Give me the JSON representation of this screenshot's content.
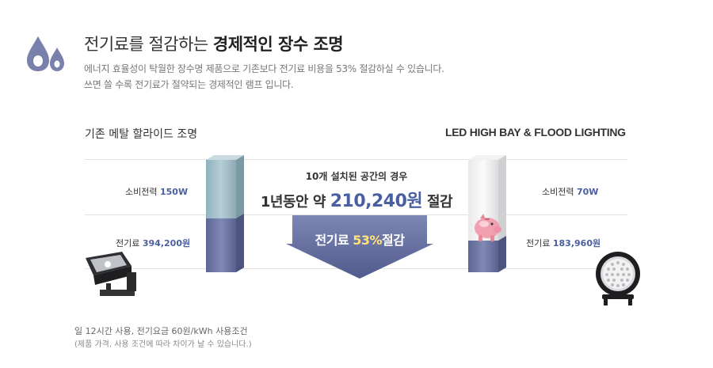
{
  "header": {
    "title_prefix": "전기료를 절감하는 ",
    "title_bold": "경제적인 장수 조명",
    "desc_line1": "에너지 효율성이 탁월한 장수명 제품으로 기존보다 전기료 비용을 53% 절감하실 수 있습니다.",
    "desc_line2": "쓰면 쓸 수록 전기료가 절약되는 경제적인 램프 입니다.",
    "icon": "water-drop-icon"
  },
  "left": {
    "label": "기존 메탈 할라이드 조명",
    "power_label": "소비전력",
    "power_value": "150W",
    "cost_label": "전기료",
    "cost_value": "394,200원"
  },
  "right": {
    "label": "LED HIGH BAY & FLOOD LIGHTING",
    "power_label": "소비전력",
    "power_value": "70W",
    "cost_label": "전기료",
    "cost_value": "183,960원"
  },
  "center": {
    "condition": "10개 설치된 공간의 경우",
    "saving_prefix": "1년동안 약",
    "saving_amount": "210,240원",
    "saving_suffix": "절감",
    "arrow_prefix": "전기료",
    "arrow_percent": "53%",
    "arrow_suffix": "절감"
  },
  "footnote": {
    "line1": "일 12시간 사용, 전기요금 60원/kWh 사용조건",
    "line2": "(제품 가격, 사용 조건에 따라 차이가 날 수 있습니다.)"
  },
  "colors": {
    "accent": "#4a5fa0",
    "bar_dark": "#6f77a3",
    "bar_light": "#9fbac6",
    "arrow": "#5e6aa3"
  }
}
